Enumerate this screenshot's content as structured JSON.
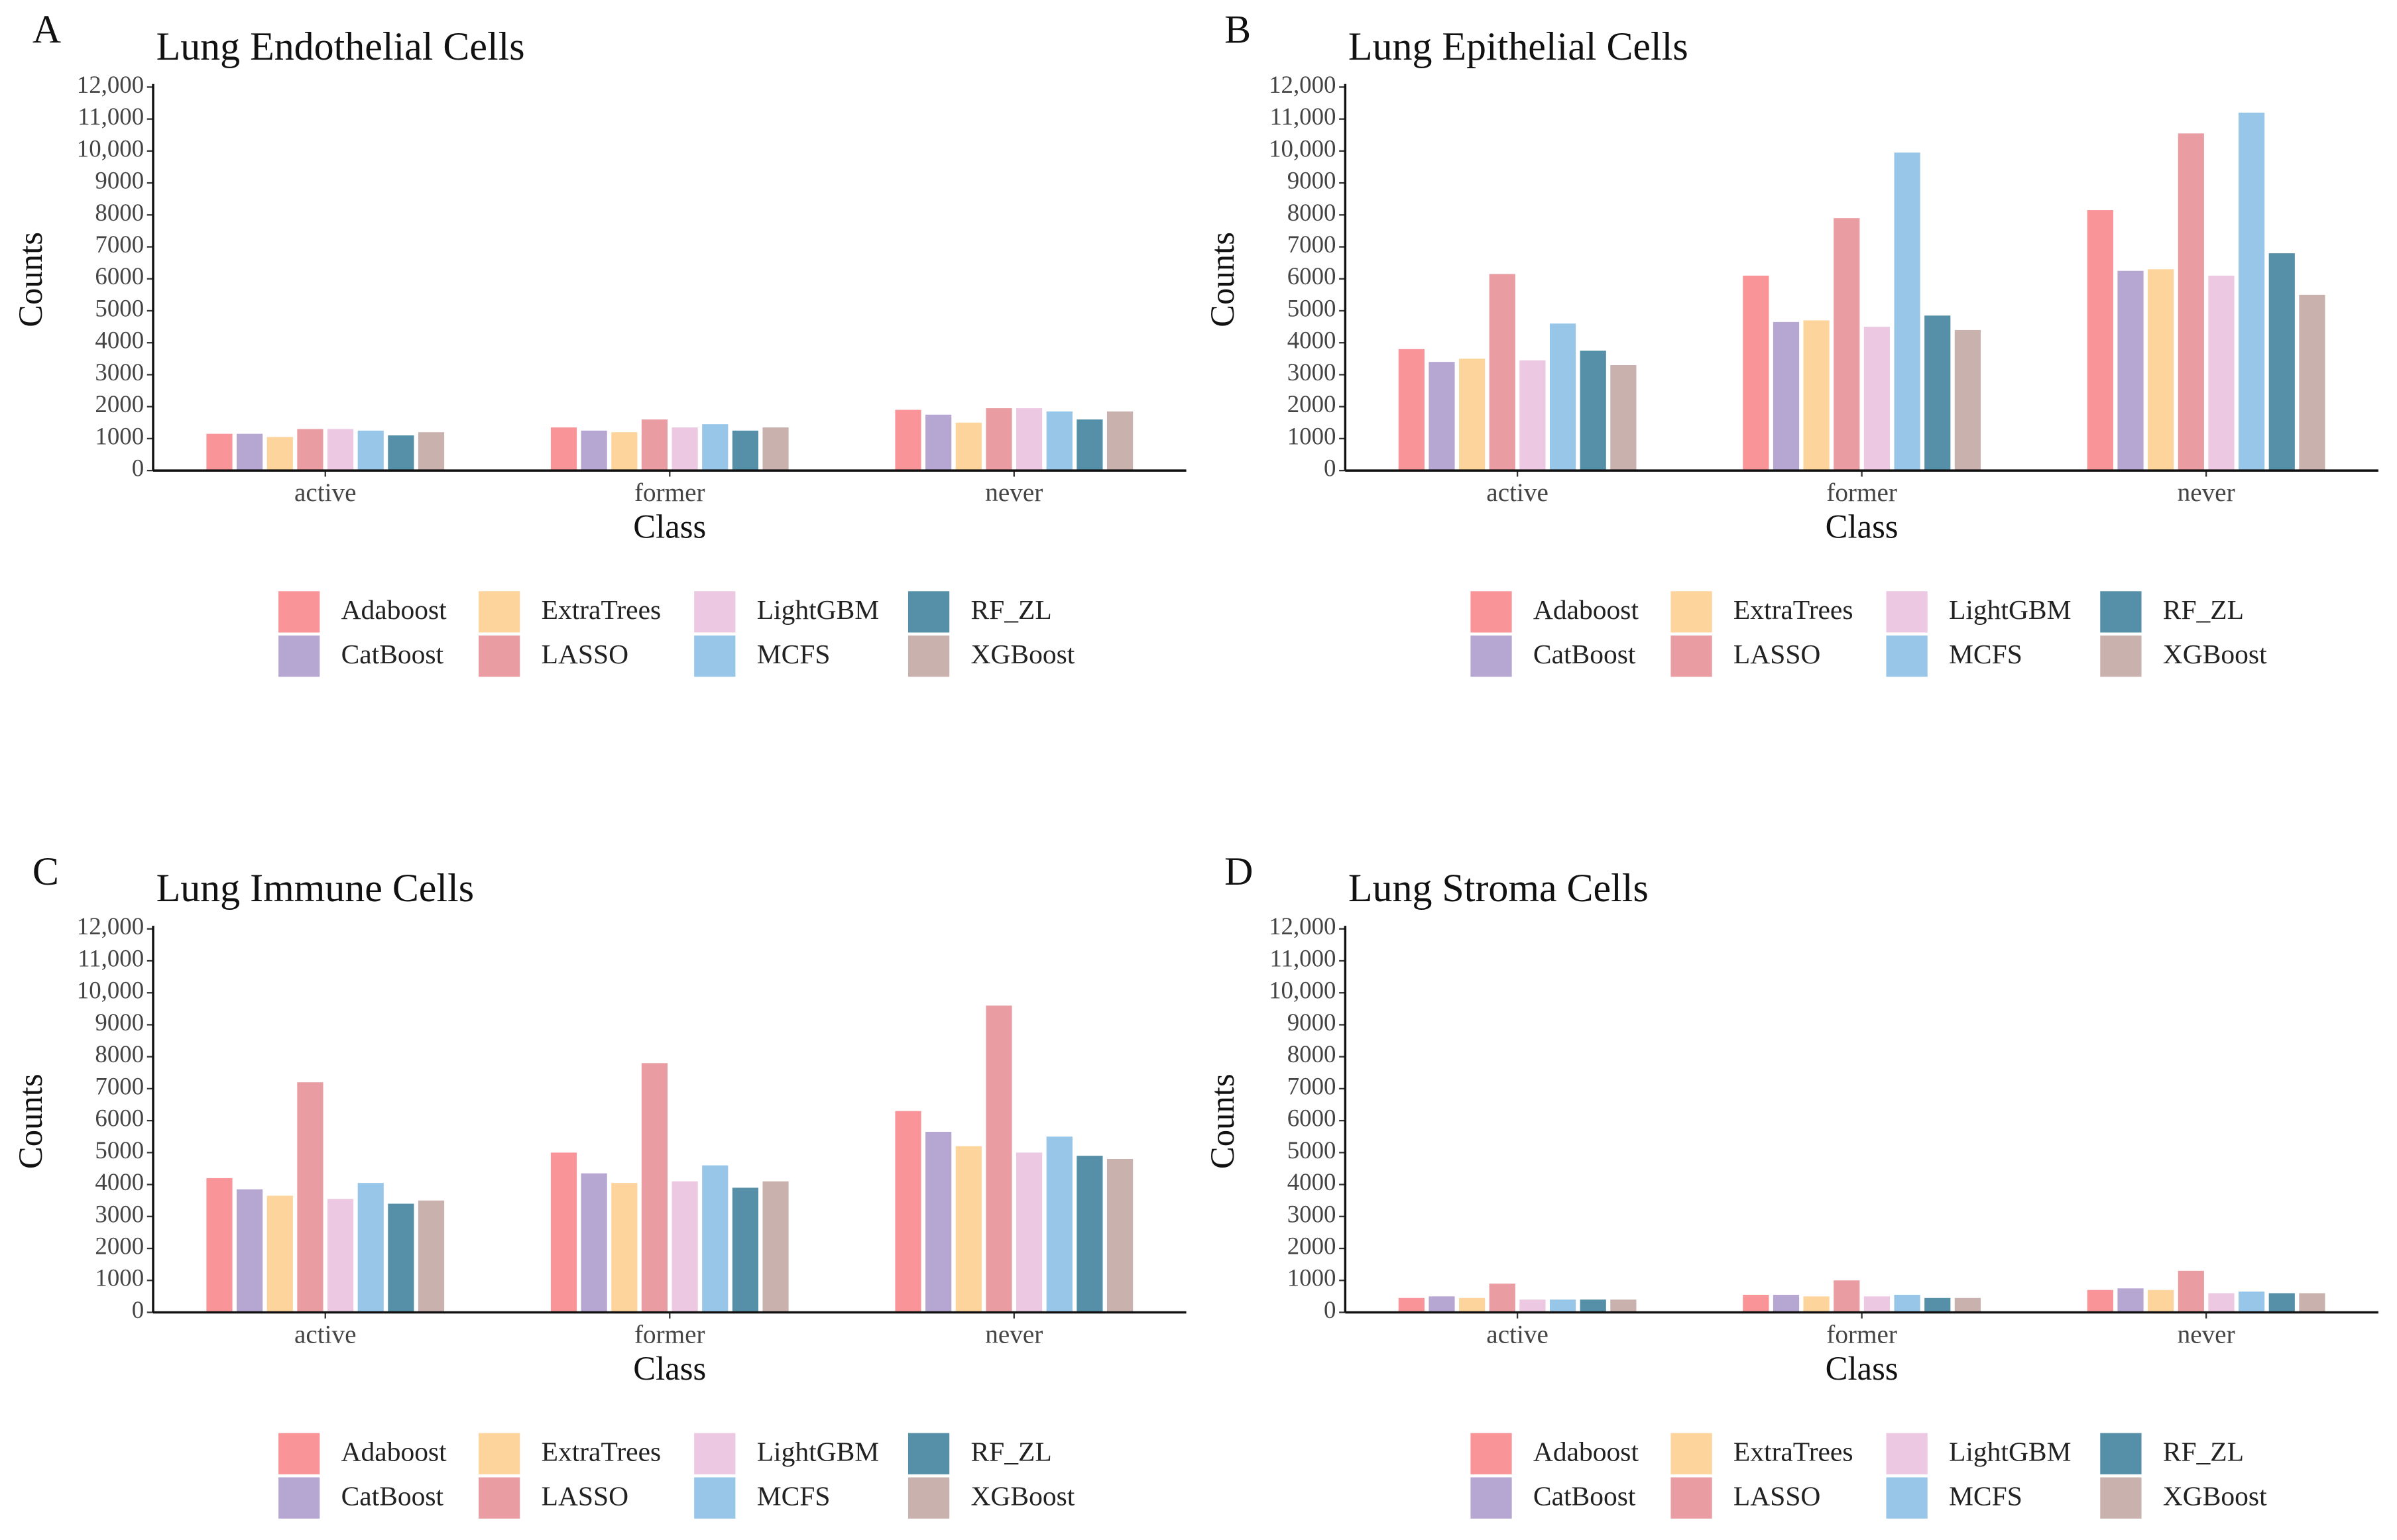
{
  "chart_data": [
    {
      "type": "bar",
      "panel": "A",
      "title": "Lung Endothelial Cells",
      "xlabel": "Class",
      "ylabel": "Counts",
      "categories": [
        "active",
        "former",
        "never"
      ],
      "ylim": [
        0,
        12000
      ],
      "yticks": [
        0,
        1000,
        2000,
        3000,
        4000,
        5000,
        6000,
        7000,
        8000,
        9000,
        {
          "value": 10000,
          "label": "10,000"
        },
        {
          "value": 11000,
          "label": "11,000"
        },
        {
          "value": 12000,
          "label": "12,000"
        }
      ],
      "series": [
        {
          "name": "Adaboost",
          "color": "#f99599",
          "values": [
            1150,
            1350,
            1900
          ]
        },
        {
          "name": "CatBoost",
          "color": "#b6a7d2",
          "values": [
            1150,
            1250,
            1750
          ]
        },
        {
          "name": "ExtraTrees",
          "color": "#fdd49c",
          "values": [
            1050,
            1200,
            1500
          ]
        },
        {
          "name": "LASSO",
          "color": "#e99ca1",
          "values": [
            1300,
            1600,
            1950
          ]
        },
        {
          "name": "LightGBM",
          "color": "#ecc8e2",
          "values": [
            1300,
            1350,
            1950
          ]
        },
        {
          "name": "MCFS",
          "color": "#98c6e8",
          "values": [
            1250,
            1450,
            1850
          ]
        },
        {
          "name": "RF_ZL",
          "color": "#5590a8",
          "values": [
            1100,
            1250,
            1600
          ]
        },
        {
          "name": "XGBoost",
          "color": "#c9b1ae",
          "values": [
            1200,
            1350,
            1850
          ]
        }
      ]
    },
    {
      "type": "bar",
      "panel": "B",
      "title": "Lung Epithelial Cells",
      "xlabel": "Class",
      "ylabel": "Counts",
      "categories": [
        "active",
        "former",
        "never"
      ],
      "ylim": [
        0,
        12000
      ],
      "yticks": [
        0,
        1000,
        2000,
        3000,
        4000,
        5000,
        6000,
        7000,
        8000,
        9000,
        {
          "value": 10000,
          "label": "10,000"
        },
        {
          "value": 11000,
          "label": "11,000"
        },
        {
          "value": 12000,
          "label": "12,000"
        }
      ],
      "series": [
        {
          "name": "Adaboost",
          "color": "#f99599",
          "values": [
            3800,
            6100,
            8150
          ]
        },
        {
          "name": "CatBoost",
          "color": "#b6a7d2",
          "values": [
            3400,
            4650,
            6250
          ]
        },
        {
          "name": "ExtraTrees",
          "color": "#fdd49c",
          "values": [
            3500,
            4700,
            6300
          ]
        },
        {
          "name": "LASSO",
          "color": "#e99ca1",
          "values": [
            6150,
            7900,
            10550
          ]
        },
        {
          "name": "LightGBM",
          "color": "#ecc8e2",
          "values": [
            3450,
            4500,
            6100
          ]
        },
        {
          "name": "MCFS",
          "color": "#98c6e8",
          "values": [
            4600,
            9950,
            11200
          ]
        },
        {
          "name": "RF_ZL",
          "color": "#5590a8",
          "values": [
            3750,
            4850,
            6800
          ]
        },
        {
          "name": "XGBoost",
          "color": "#c9b1ae",
          "values": [
            3300,
            4400,
            5500
          ]
        }
      ]
    },
    {
      "type": "bar",
      "panel": "C",
      "title": "Lung Immune Cells",
      "xlabel": "Class",
      "ylabel": "Counts",
      "categories": [
        "active",
        "former",
        "never"
      ],
      "ylim": [
        0,
        12000
      ],
      "yticks": [
        0,
        1000,
        2000,
        3000,
        4000,
        5000,
        6000,
        7000,
        8000,
        9000,
        {
          "value": 10000,
          "label": "10,000"
        },
        {
          "value": 11000,
          "label": "11,000"
        },
        {
          "value": 12000,
          "label": "12,000"
        }
      ],
      "series": [
        {
          "name": "Adaboost",
          "color": "#f99599",
          "values": [
            4200,
            5000,
            6300
          ]
        },
        {
          "name": "CatBoost",
          "color": "#b6a7d2",
          "values": [
            3850,
            4350,
            5650
          ]
        },
        {
          "name": "ExtraTrees",
          "color": "#fdd49c",
          "values": [
            3650,
            4050,
            5200
          ]
        },
        {
          "name": "LASSO",
          "color": "#e99ca1",
          "values": [
            7200,
            7800,
            9600
          ]
        },
        {
          "name": "LightGBM",
          "color": "#ecc8e2",
          "values": [
            3550,
            4100,
            5000
          ]
        },
        {
          "name": "MCFS",
          "color": "#98c6e8",
          "values": [
            4050,
            4600,
            5500
          ]
        },
        {
          "name": "RF_ZL",
          "color": "#5590a8",
          "values": [
            3400,
            3900,
            4900
          ]
        },
        {
          "name": "XGBoost",
          "color": "#c9b1ae",
          "values": [
            3500,
            4100,
            4800
          ]
        }
      ]
    },
    {
      "type": "bar",
      "panel": "D",
      "title": "Lung Stroma Cells",
      "xlabel": "Class",
      "ylabel": "Counts",
      "categories": [
        "active",
        "former",
        "never"
      ],
      "ylim": [
        0,
        12000
      ],
      "yticks": [
        0,
        1000,
        2000,
        3000,
        4000,
        5000,
        6000,
        7000,
        8000,
        9000,
        {
          "value": 10000,
          "label": "10,000"
        },
        {
          "value": 11000,
          "label": "11,000"
        },
        {
          "value": 12000,
          "label": "12,000"
        }
      ],
      "series": [
        {
          "name": "Adaboost",
          "color": "#f99599",
          "values": [
            450,
            550,
            700
          ]
        },
        {
          "name": "CatBoost",
          "color": "#b6a7d2",
          "values": [
            500,
            550,
            750
          ]
        },
        {
          "name": "ExtraTrees",
          "color": "#fdd49c",
          "values": [
            450,
            500,
            700
          ]
        },
        {
          "name": "LASSO",
          "color": "#e99ca1",
          "values": [
            900,
            1000,
            1300
          ]
        },
        {
          "name": "LightGBM",
          "color": "#ecc8e2",
          "values": [
            400,
            500,
            600
          ]
        },
        {
          "name": "MCFS",
          "color": "#98c6e8",
          "values": [
            400,
            550,
            650
          ]
        },
        {
          "name": "RF_ZL",
          "color": "#5590a8",
          "values": [
            400,
            450,
            600
          ]
        },
        {
          "name": "XGBoost",
          "color": "#c9b1ae",
          "values": [
            400,
            450,
            600
          ]
        }
      ]
    }
  ]
}
